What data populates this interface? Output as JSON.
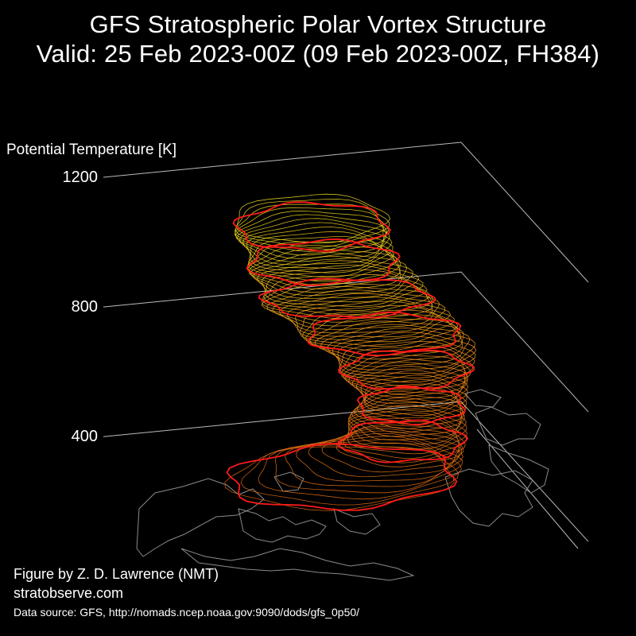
{
  "figure": {
    "title_line1": "GFS Stratospheric Polar Vortex Structure",
    "title_line2": "Valid: 25 Feb 2023-00Z  (09 Feb 2023-00Z, FH384)",
    "credit_author": "Figure by Z. D. Lawrence (NMT)",
    "credit_site": "stratobserve.com",
    "data_source": "Data source: GFS, http://nomads.ncep.noaa.gov:9090/dods/gfs_0p50/"
  },
  "chart_data": {
    "type": "3d-isosurface",
    "title": "GFS Stratospheric Polar Vortex Structure",
    "subtitle": "Valid: 25 Feb 2023-00Z  (09 Feb 2023-00Z, FH384)",
    "zlabel": "Potential Temperature [K]",
    "z_ticks": [
      400,
      800,
      1200
    ],
    "zlim": [
      300,
      1200
    ],
    "grid": true,
    "colors": {
      "background": "#000000",
      "text": "#ffffff",
      "grid": "#bbbbbb",
      "coastline": "#8a8a8a",
      "highlight_contours": "#ff1a1a",
      "contour_low": "#e06a10",
      "contour_mid": "#ff9a1a",
      "contour_high": "#f0e020"
    }
  }
}
